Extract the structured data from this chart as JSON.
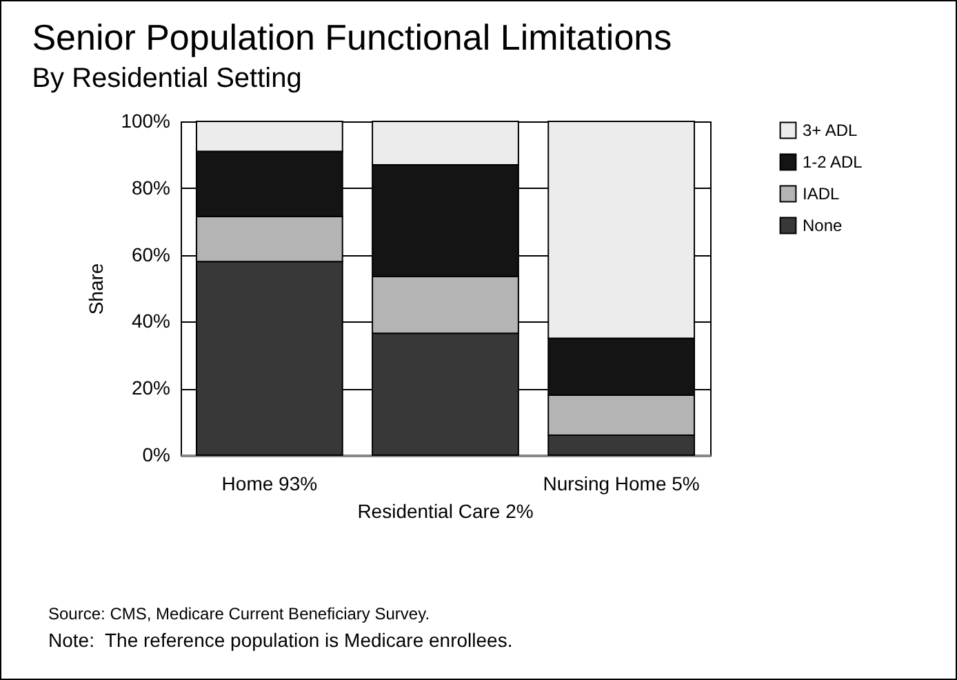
{
  "chart_data": {
    "type": "bar",
    "title": "Senior Population Functional Limitations",
    "subtitle": "By Residential Setting",
    "ylabel": "Share",
    "categories": [
      "Home 93%",
      "Residential Care 2%",
      "Nursing Home 5%"
    ],
    "stacked": true,
    "series": [
      {
        "name": "None",
        "color": "#383838",
        "values": [
          58,
          36.5,
          6
        ]
      },
      {
        "name": "IADL",
        "color": "#b4b4b4",
        "values": [
          13.5,
          17,
          12
        ]
      },
      {
        "name": "1-2 ADL",
        "color": "#141414",
        "values": [
          19.5,
          33.5,
          17
        ]
      },
      {
        "name": "3+ ADL",
        "color": "#ececec",
        "values": [
          9,
          13,
          65
        ]
      }
    ],
    "ylim": [
      0,
      100
    ],
    "yticks": [
      {
        "value": 0,
        "label": "0%"
      },
      {
        "value": 20,
        "label": "20%"
      },
      {
        "value": 40,
        "label": "40%"
      },
      {
        "value": 60,
        "label": "60%"
      },
      {
        "value": 80,
        "label": "80%"
      },
      {
        "value": 100,
        "label": "100%"
      }
    ],
    "grid": "y",
    "legend": "right",
    "annotations": [
      "Source: CMS, Medicare Current Beneficiary Survey.",
      "Note:  The reference population is Medicare enrollees."
    ]
  }
}
